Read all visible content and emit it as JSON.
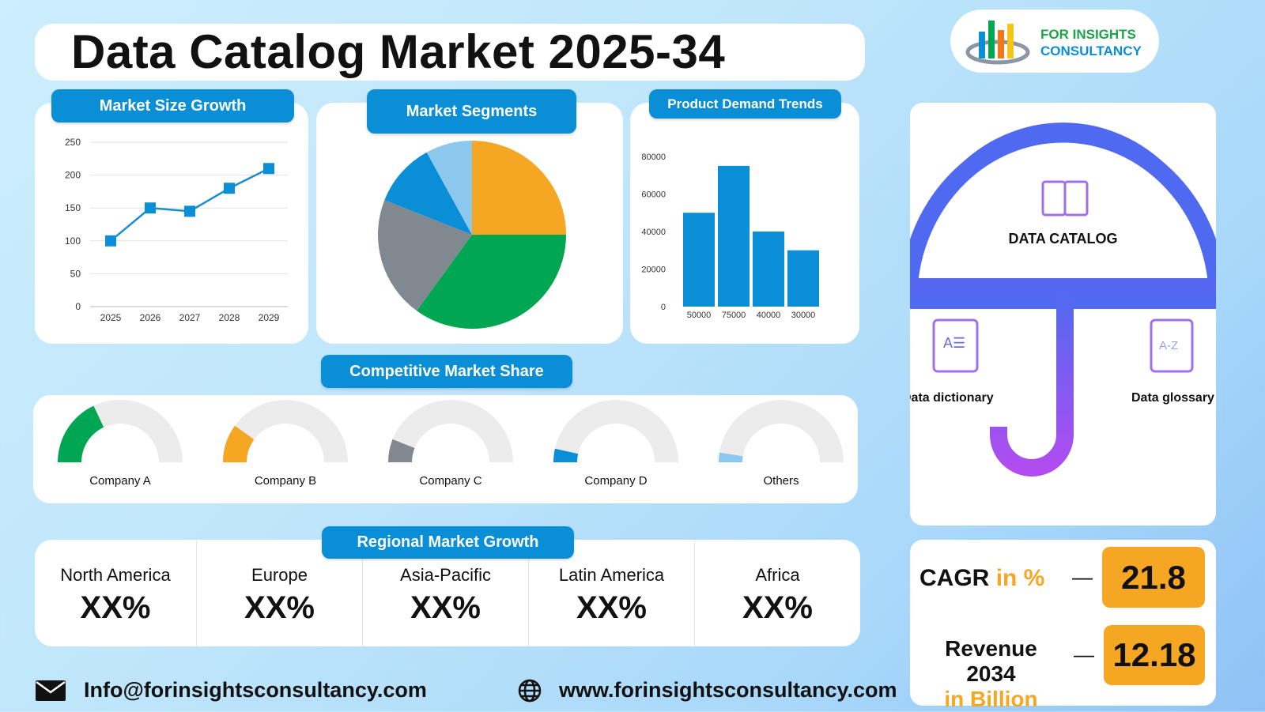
{
  "title": "Data Catalog Market 2025-34",
  "logo": {
    "line1": "FOR INSIGHTS",
    "line2": "CONSULTANCY"
  },
  "colors": {
    "accent": "#0a8fd6",
    "orange": "#f5a623",
    "green": "#00a651",
    "gray": "#808890",
    "blue": "#0a8fd6",
    "light_blue": "#8cc8ee",
    "umbrella_top": "#4f6af0",
    "umbrella_bottom": "#b14cf0"
  },
  "chart_data": [
    {
      "type": "line",
      "title": "Market Size Growth",
      "categories": [
        "2025",
        "2026",
        "2027",
        "2028",
        "2029"
      ],
      "values": [
        100,
        150,
        145,
        180,
        210
      ],
      "ylim": [
        0,
        250
      ],
      "yticks": [
        "0",
        "50",
        "100",
        "150",
        "200",
        "250"
      ],
      "grid": true
    },
    {
      "type": "pie",
      "title": "Market Segments",
      "values": [
        25,
        35,
        21,
        11,
        8
      ],
      "colors": [
        "#f5a623",
        "#00a651",
        "#808890",
        "#0a8fd6",
        "#8cc8ee"
      ]
    },
    {
      "type": "bar",
      "title": "Product Demand Trends",
      "categories": [
        "50000",
        "75000",
        "40000",
        "30000"
      ],
      "values": [
        50000,
        75000,
        40000,
        30000
      ],
      "ylim": [
        0,
        80000
      ],
      "yticks": [
        "0",
        "20000",
        "40000",
        "60000",
        "80000"
      ]
    },
    {
      "type": "gauge",
      "title": "Competitive Market Share",
      "categories": [
        "Company A",
        "Company B",
        "Company C",
        "Company D",
        "Others"
      ],
      "values": [
        0.36,
        0.2,
        0.12,
        0.07,
        0.05
      ],
      "colors": [
        "#00a651",
        "#f5a623",
        "#808890",
        "#0a8fd6",
        "#8cc8ee"
      ]
    }
  ],
  "regional": {
    "title": "Regional Market Growth",
    "items": [
      {
        "name": "North America",
        "value": "XX%"
      },
      {
        "name": "Europe",
        "value": "XX%"
      },
      {
        "name": "Asia-Pacific",
        "value": "XX%"
      },
      {
        "name": "Latin America",
        "value": "XX%"
      },
      {
        "name": "Africa",
        "value": "XX%"
      }
    ]
  },
  "umbrella": {
    "top": "DATA CATALOG",
    "left": "Data dictionary",
    "right": "Data glossary"
  },
  "kpi": {
    "cagr_label": "CAGR",
    "cagr_unit": "in %",
    "cagr_value": "21.8",
    "rev_label": "Revenue 2034",
    "rev_unit": "in Billion",
    "rev_value": "12.18",
    "dash": "—"
  },
  "footer": {
    "email": "Info@forinsightsconsultancy.com",
    "website": "www.forinsightsconsultancy.com"
  }
}
